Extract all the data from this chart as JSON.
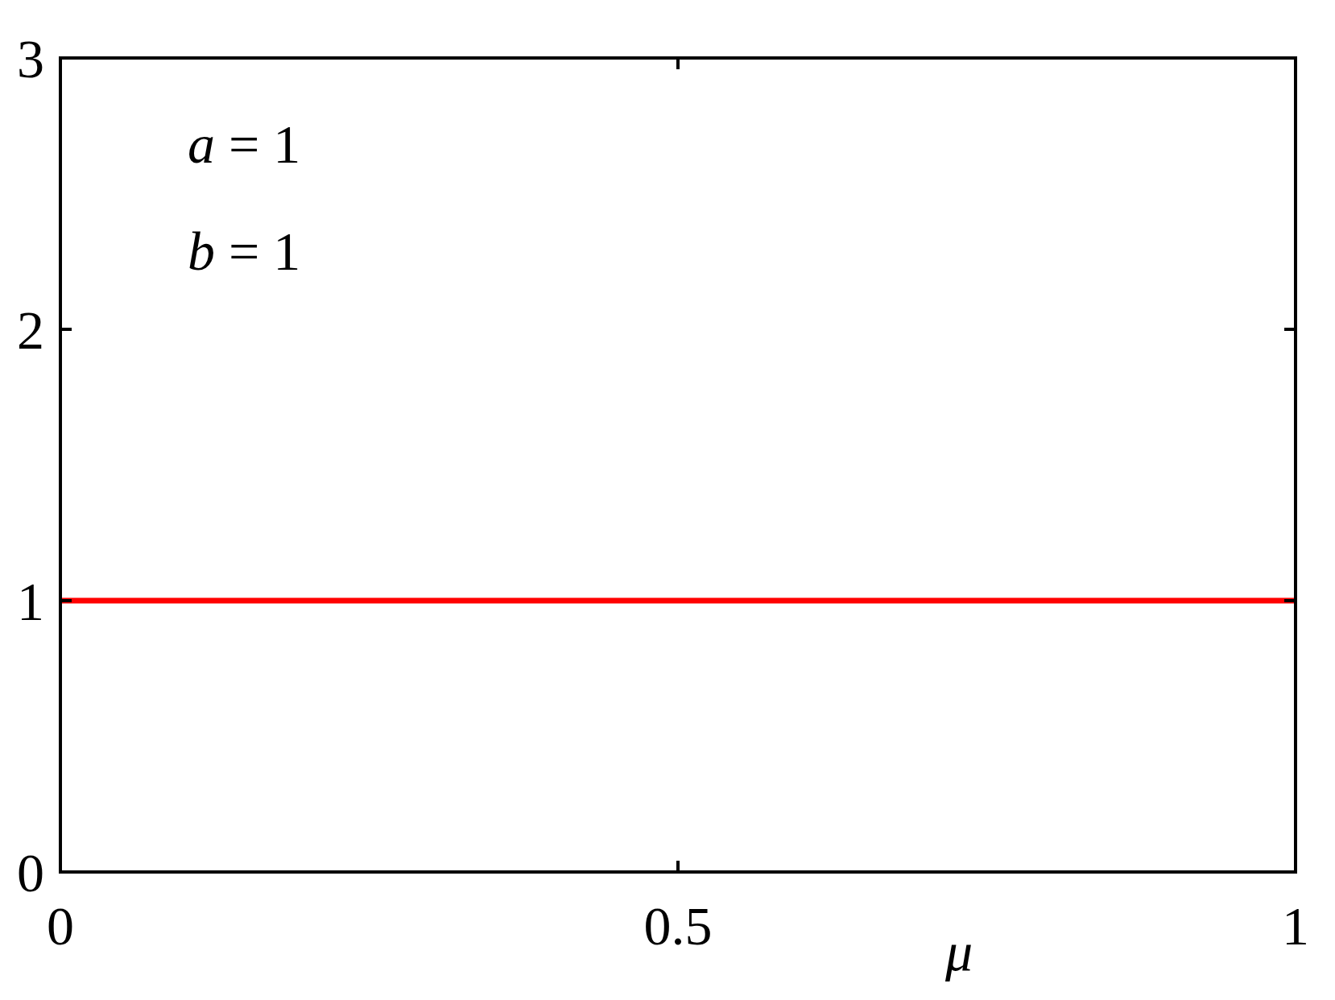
{
  "chart_data": {
    "type": "line",
    "xlabel": "μ",
    "annotations": [
      "a = 1",
      "b = 1"
    ],
    "x": [
      0,
      1
    ],
    "series": [
      {
        "color": "#ff0000",
        "values": [
          1,
          1
        ]
      }
    ],
    "xlim": [
      0,
      1
    ],
    "xticks": [
      0,
      0.5,
      1
    ],
    "ylim": [
      0,
      3
    ],
    "yticks": [
      0,
      1,
      2,
      3
    ],
    "grid": false,
    "marker": "none",
    "line_style": "solid"
  }
}
